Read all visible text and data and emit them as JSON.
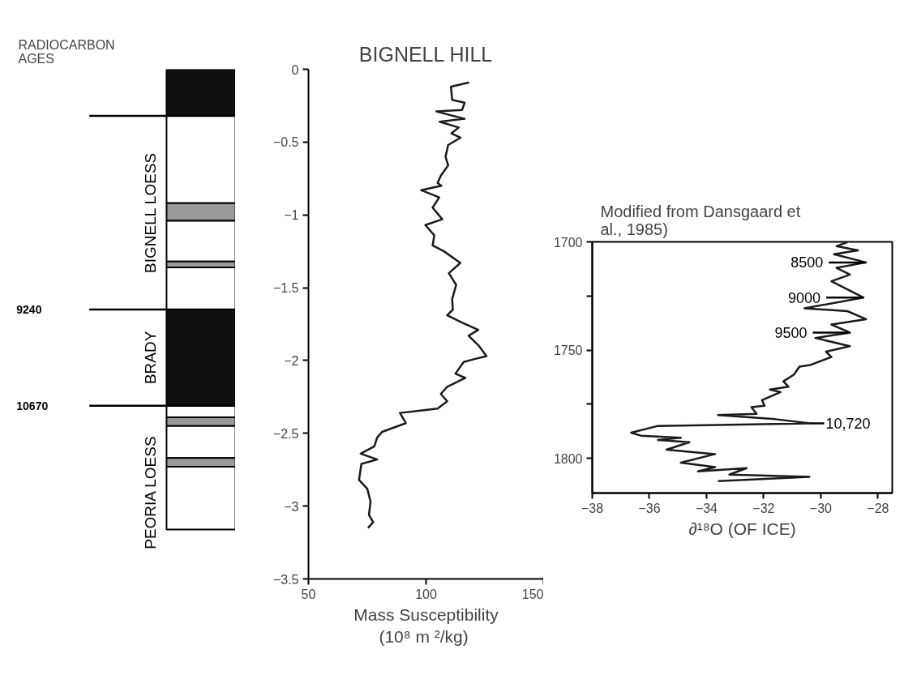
{
  "chart_data": [
    {
      "type": "bar",
      "stacked": true,
      "categories": [
        null
      ],
      "ylim": [
        -3.5,
        0
      ],
      "yticks": [
        0,
        -0.5,
        -1,
        -1.5,
        -2,
        -2.5,
        -3,
        -3.5
      ],
      "tick_labels": false,
      "title": "RADIOCARBON AGES",
      "series": [
        {
          "color": "#111111",
          "values": [
            -0.32
          ]
        },
        {
          "color": "#ffffff",
          "values": [
            -0.6
          ]
        },
        {
          "color": "#9a9a9a",
          "values": [
            -0.12
          ]
        },
        {
          "color": "#ffffff",
          "values": [
            -0.28
          ]
        },
        {
          "color": "#9a9a9a",
          "values": [
            -0.04
          ]
        },
        {
          "color": "#ffffff",
          "values": [
            -0.29
          ]
        },
        {
          "color": "#111111",
          "values": [
            -0.66
          ]
        },
        {
          "color": "#ffffff",
          "values": [
            -0.08
          ]
        },
        {
          "color": "#9a9a9a",
          "values": [
            -0.06
          ]
        },
        {
          "color": "#ffffff",
          "values": [
            -0.22
          ]
        },
        {
          "color": "#9a9a9a",
          "values": [
            -0.06
          ]
        },
        {
          "color": "#ffffff",
          "values": [
            -0.43
          ]
        }
      ],
      "ref_lines": [
        {
          "axis": "y",
          "value": -0.32
        },
        {
          "axis": "y",
          "value": -1.65
        },
        {
          "axis": "y",
          "value": -2.31
        }
      ],
      "annotations": [
        "9240",
        "10670",
        "BIGNELL LOESS",
        "BRADY",
        "PEORIA LOESS"
      ]
    },
    {
      "type": "line",
      "title": "BIGNELL HILL",
      "xlabel": "Mass Susceptibility\n(10⁸  m ²/kg)",
      "xlim": [
        50,
        150
      ],
      "xticks": [
        50,
        100,
        150
      ],
      "ylim": [
        -3.5,
        0
      ],
      "yticks": [
        0,
        -0.5,
        -1,
        -1.5,
        -2,
        -2.5,
        -3,
        -3.5
      ],
      "series": [
        {
          "color": "#1a1a1a",
          "x": [
            118.3,
            110.6,
            111.1,
            116.4,
            115.3,
            104.4,
            116.4,
            105.8,
            113.9,
            110.8,
            114.6,
            109.4,
            108.3,
            109.4,
            106.3,
            104.9,
            106.5,
            97.9,
            105.6,
            102.8,
            106.9,
            99.7,
            103.5,
            102.8,
            107.6,
            114.6,
            109.7,
            112.8,
            111.1,
            111.4,
            109.0,
            115.3,
            122.2,
            118.1,
            122.5,
            125.7,
            120.6,
            116.0,
            112.5,
            116.7,
            109.0,
            106.3,
            109.0,
            104.9,
            88.9,
            91.4,
            81.3,
            79.2,
            78.0,
            72.2,
            79.2,
            72.5,
            71.5,
            75.0,
            76.4,
            75.7,
            77.5,
            75.3
          ],
          "values": [
            -0.09,
            -0.12,
            -0.21,
            -0.23,
            -0.28,
            -0.29,
            -0.34,
            -0.36,
            -0.4,
            -0.44,
            -0.47,
            -0.52,
            -0.6,
            -0.66,
            -0.73,
            -0.78,
            -0.8,
            -0.83,
            -0.88,
            -0.95,
            -1.03,
            -1.07,
            -1.14,
            -1.21,
            -1.25,
            -1.33,
            -1.4,
            -1.48,
            -1.58,
            -1.65,
            -1.69,
            -1.74,
            -1.79,
            -1.83,
            -1.9,
            -1.97,
            -1.99,
            -2.01,
            -2.09,
            -2.12,
            -2.18,
            -2.23,
            -2.28,
            -2.33,
            -2.36,
            -2.43,
            -2.49,
            -2.53,
            -2.59,
            -2.64,
            -2.68,
            -2.71,
            -2.82,
            -2.88,
            -2.97,
            -3.06,
            -3.11,
            -3.15
          ]
        }
      ]
    },
    {
      "type": "line",
      "title": "Modified from Dansgaard et al., 1985)",
      "xlabel": "∂¹⁸O (OF ICE)",
      "xlim": [
        -38,
        -27.5
      ],
      "xticks": [
        -38,
        -36,
        -34,
        -32,
        -30,
        -28
      ],
      "ylim": [
        1816,
        1700
      ],
      "yticks": [
        1700,
        {
          "value": 1725,
          "label": null
        },
        1750,
        {
          "value": 1775,
          "label": null
        },
        1800
      ],
      "series": [
        {
          "color": "#1a1a1a",
          "x": [
            -29.07,
            -29.45,
            -28.7,
            -29.54,
            -28.42,
            -29.45,
            -28.98,
            -29.63,
            -28.51,
            -30.57,
            -29.07,
            -28.42,
            -29.63,
            -28.98,
            -30.19,
            -28.98,
            -29.82,
            -29.63,
            -30.38,
            -30.75,
            -30.94,
            -31.31,
            -31.13,
            -31.78,
            -31.41,
            -32.06,
            -31.97,
            -32.43,
            -32.25,
            -33.6,
            -31.59,
            -30.38,
            -35.7,
            -36.64,
            -36.3,
            -34.9,
            -35.7,
            -34.6,
            -35.4,
            -33.7,
            -34.9,
            -33.7,
            -34.3,
            -32.6,
            -33.2,
            -31.9,
            -30.4,
            -33.6
          ],
          "values": [
            1700.1,
            1702,
            1703.9,
            1705.7,
            1709.5,
            1712,
            1715.1,
            1718.2,
            1725.7,
            1730.7,
            1732,
            1735.7,
            1738.2,
            1741.9,
            1744.4,
            1748.2,
            1750.7,
            1753.2,
            1756.9,
            1757.6,
            1761.3,
            1764.4,
            1766.9,
            1768.2,
            1769.4,
            1773.1,
            1775.7,
            1776.3,
            1779.4,
            1780,
            1781.9,
            1783.8,
            1785,
            1788.1,
            1789.5,
            1790.5,
            1791.5,
            1792.5,
            1796,
            1798,
            1802,
            1804,
            1806,
            1804.5,
            1807.5,
            1808,
            1808.5,
            1810.5
          ]
        }
      ],
      "annotations": [
        {
          "text": "8500",
          "x": -28.42,
          "y": 1709.5
        },
        {
          "text": "9000",
          "x": -28.51,
          "y": 1725.7
        },
        {
          "text": "9500",
          "x": -28.98,
          "y": 1741.9
        },
        {
          "text": "10,720",
          "x": -30.38,
          "y": 1783.8
        }
      ]
    }
  ]
}
